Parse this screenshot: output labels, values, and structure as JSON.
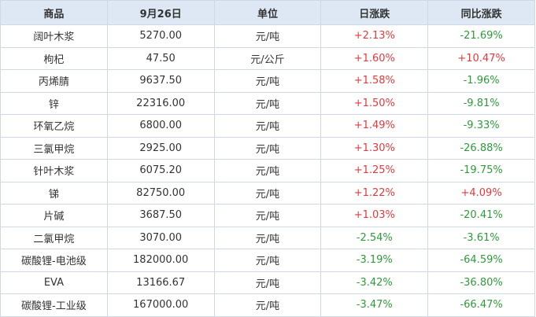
{
  "table": {
    "header": [
      "商品",
      "9月26日",
      "单位",
      "日涨跌",
      "同比涨跌"
    ],
    "rows": [
      [
        "阔叶木浆",
        "5270.00",
        "元/吨",
        "+2.13%",
        "-21.69%"
      ],
      [
        "枸杞",
        "47.50",
        "元/公斤",
        "+1.60%",
        "+10.47%"
      ],
      [
        "丙烯腈",
        "9637.50",
        "元/吨",
        "+1.58%",
        "-1.96%"
      ],
      [
        "锌",
        "22316.00",
        "元/吨",
        "+1.50%",
        "-9.81%"
      ],
      [
        "环氧乙烷",
        "6800.00",
        "元/吨",
        "+1.49%",
        "-9.33%"
      ],
      [
        "三氯甲烷",
        "2925.00",
        "元/吨",
        "+1.30%",
        "-26.88%"
      ],
      [
        "针叶木浆",
        "6075.20",
        "元/吨",
        "+1.25%",
        "-19.75%"
      ],
      [
        "锑",
        "82750.00",
        "元/吨",
        "+1.22%",
        "+4.09%"
      ],
      [
        "片碱",
        "3687.50",
        "元/吨",
        "+1.03%",
        "-20.41%"
      ],
      [
        "二氯甲烷",
        "3070.00",
        "元/吨",
        "-2.54%",
        "-3.61%"
      ],
      [
        "碳酸锂-电池级",
        "182000.00",
        "元/吨",
        "-3.19%",
        "-64.59%"
      ],
      [
        "EVA",
        "13166.67",
        "元/吨",
        "-3.42%",
        "-36.80%"
      ],
      [
        "碳酸锂-工业级",
        "167000.00",
        "元/吨",
        "-3.47%",
        "-66.47%"
      ]
    ]
  }
}
